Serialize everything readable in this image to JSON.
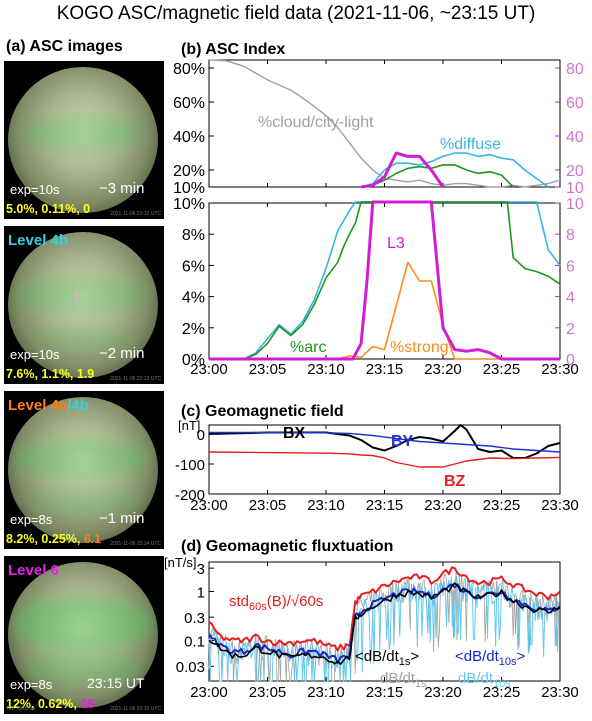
{
  "title": "KOGO ASC/magnetic field data (2021-11-06, ~23:15 UT)",
  "colors": {
    "level4b": "#38cfe6",
    "level4a": "#ff7d14",
    "level6": "#e61ee6",
    "values_yellow": "#ffff1e"
  },
  "asc_panel": {
    "title": "(a) ASC images",
    "images": [
      {
        "level_parts": [],
        "exposure": "exp=10s",
        "time": "−3 min",
        "values": [
          {
            "text": "5.0%, 0.11%, 0",
            "color": "#ffff1e"
          }
        ],
        "stamp": "2021-11-06 23:12 UTC"
      },
      {
        "level_parts": [
          {
            "text": "Level 4b",
            "color": "#38cfe6"
          }
        ],
        "exposure": "exp=10s",
        "time": "−2 min",
        "values": [
          {
            "text": "7.6%, 1.1%, ",
            "color": "#ffff1e"
          },
          {
            "text": "1.9",
            "color": "#ffff1e"
          }
        ],
        "stamp": "2021-11-06 23:13 UTC"
      },
      {
        "level_parts": [
          {
            "text": "Level 4a",
            "color": "#ff7d14"
          },
          {
            "text": "/4b",
            "color": "#38cfe6"
          }
        ],
        "exposure": "exp=8s",
        "time": "−1 min",
        "values": [
          {
            "text": "8.2%, 0.25%, ",
            "color": "#ffff1e"
          },
          {
            "text": "6.1",
            "color": "#ff7d14"
          }
        ],
        "stamp": "2021-11-06 23:14 UTC"
      },
      {
        "level_parts": [
          {
            "text": "Level 6",
            "color": "#e61ee6"
          }
        ],
        "exposure": "exp=8s",
        "time": "23:15 UT",
        "values": [
          {
            "text": "12%, 0.62%, ",
            "color": "#ffff1e"
          },
          {
            "text": "16",
            "color": "#e61ee6"
          }
        ],
        "stamp": "2021-11-06 23:15 UTC",
        "stamp_left": "IRF KIRUNA"
      }
    ]
  },
  "chart_data": [
    {
      "id": "b_top",
      "type": "line",
      "title": "(b) ASC Index",
      "xlim": [
        0,
        30
      ],
      "xticks": [
        "23:00",
        "23:05",
        "23:10",
        "23:15",
        "23:20",
        "23:25",
        "23:30"
      ],
      "ylim_left": [
        10,
        90
      ],
      "yticks_left": [
        "10%",
        "20%",
        "40%",
        "60%",
        "80%"
      ],
      "ylim_right": [
        10,
        90
      ],
      "yticks_right": [
        "10",
        "20",
        "40",
        "60",
        "80"
      ],
      "annotations": {
        "cloud": "%cloud/city-light",
        "diffuse": "%diffuse"
      },
      "series": [
        {
          "key": "cloud",
          "color": "#a0a0a0",
          "axis": "left",
          "x": [
            0,
            1.5,
            3,
            5,
            7,
            8.5,
            10,
            11,
            12,
            13,
            14,
            15,
            16,
            17,
            18,
            19,
            20,
            21,
            22,
            23,
            24,
            25,
            26,
            27,
            28,
            29,
            30
          ],
          "y": [
            90,
            89,
            82,
            73,
            67,
            60,
            52,
            45,
            36,
            27,
            20,
            15,
            14,
            13,
            14,
            12,
            11,
            12,
            12,
            11,
            10,
            9,
            11,
            10,
            11,
            12,
            14
          ]
        },
        {
          "key": "diffuse",
          "color": "#38b4e6",
          "axis": "left",
          "x": [
            13,
            14,
            15,
            16,
            17,
            18,
            19,
            20,
            21,
            22,
            23,
            24,
            25,
            26,
            27,
            28,
            29
          ],
          "y": [
            10,
            12,
            20,
            24,
            24,
            23,
            25,
            28,
            30,
            30,
            28,
            29,
            27,
            26,
            20,
            15,
            10
          ]
        },
        {
          "key": "arc",
          "color": "#1e961e",
          "axis": "left",
          "x": [
            13,
            14,
            15,
            16,
            17,
            18,
            19,
            20,
            21,
            22,
            23,
            24,
            25,
            26
          ],
          "y": [
            10,
            11,
            14,
            18,
            21,
            22,
            21,
            23,
            23,
            20,
            18,
            19,
            17,
            10
          ]
        },
        {
          "key": "level",
          "color": "#d21ed2",
          "axis": "right",
          "x": [
            13,
            14,
            15,
            16,
            17,
            18,
            19,
            20
          ],
          "y": [
            10,
            11,
            16,
            30,
            28,
            28,
            20,
            10
          ]
        }
      ]
    },
    {
      "id": "b_bottom",
      "type": "line",
      "xlim": [
        0,
        30
      ],
      "xticks": [
        "23:00",
        "23:05",
        "23:10",
        "23:15",
        "23:20",
        "23:25",
        "23:30"
      ],
      "ylim_left": [
        0,
        10
      ],
      "yticks_left": [
        "0%",
        "2%",
        "4%",
        "6%",
        "8%",
        "10%"
      ],
      "ylim_right": [
        0,
        10
      ],
      "yticks_right": [
        "0",
        "2",
        "4",
        "6",
        "8",
        "10"
      ],
      "annotations": {
        "arc": "%arc",
        "strong": "%strong",
        "level": "L3"
      },
      "series": [
        {
          "key": "diffuse",
          "color": "#38b4e6",
          "axis": "left",
          "x": [
            0,
            3,
            4,
            5,
            6,
            7,
            8,
            9,
            10,
            11,
            12,
            12.5,
            13,
            14,
            28,
            29,
            30
          ],
          "y": [
            0,
            0,
            0.4,
            1.3,
            2.2,
            1.6,
            2.4,
            3.8,
            5.8,
            8.2,
            9.5,
            10.5,
            10.5,
            10.5,
            10.5,
            7,
            6
          ]
        },
        {
          "key": "arc",
          "color": "#1e961e",
          "axis": "left",
          "x": [
            0,
            3,
            4,
            5,
            6,
            7,
            8,
            9,
            10,
            11,
            11.5,
            12,
            12.5,
            13,
            14,
            25.5,
            26,
            27,
            28,
            29,
            30
          ],
          "y": [
            0,
            0,
            0.3,
            1.0,
            2.1,
            1.5,
            2.2,
            3.5,
            5.2,
            6.2,
            7.2,
            8.0,
            8.7,
            10.5,
            10.5,
            10.5,
            6.5,
            5.8,
            5.6,
            5.3,
            4.8
          ]
        },
        {
          "key": "strong",
          "color": "#ff8c1e",
          "axis": "left",
          "x": [
            0,
            11,
            12,
            13,
            14,
            15,
            16,
            17,
            18,
            19,
            20,
            21,
            22,
            30
          ],
          "y": [
            0,
            0,
            0.2,
            0.1,
            0.8,
            0.6,
            3.4,
            6.2,
            5.0,
            5.0,
            2.2,
            0,
            0,
            0
          ]
        },
        {
          "key": "level",
          "color": "#d21ed2",
          "axis": "right",
          "x": [
            0,
            11.7,
            12.3,
            13,
            13.5,
            14,
            14.6,
            15.3,
            16,
            19,
            20,
            21,
            22,
            23,
            24,
            25,
            30
          ],
          "y": [
            0,
            0,
            0,
            1,
            5,
            10.5,
            10.5,
            10.5,
            10.5,
            10.5,
            2,
            0.6,
            0.5,
            0.6,
            0.4,
            0,
            0
          ]
        }
      ]
    },
    {
      "id": "c",
      "type": "line",
      "title": "(c) Geomagnetic field",
      "ylabel": "[nT]",
      "xlim": [
        0,
        30
      ],
      "xticks": [
        "23:00",
        "23:05",
        "23:10",
        "23:15",
        "23:20",
        "23:25",
        "23:30"
      ],
      "ylim": [
        -200,
        30
      ],
      "yticks": [
        "-200",
        "-100",
        "0"
      ],
      "series": [
        {
          "name": "BX",
          "color": "#000000",
          "x": [
            0,
            5,
            10,
            11,
            12,
            13,
            14,
            15,
            16,
            17,
            18,
            19,
            19.5,
            20,
            21,
            21.5,
            22,
            23,
            24,
            25,
            26,
            27,
            28,
            29,
            30
          ],
          "y": [
            0,
            5,
            5,
            0,
            -5,
            -20,
            -45,
            -55,
            -40,
            -20,
            -10,
            -15,
            -20,
            -25,
            10,
            30,
            15,
            -50,
            -60,
            -55,
            -80,
            -80,
            -65,
            -40,
            -30
          ]
        },
        {
          "name": "BY",
          "color": "#1e32d2",
          "x": [
            0,
            5,
            10,
            12,
            14,
            16,
            18,
            20,
            22,
            24,
            26,
            28,
            30
          ],
          "y": [
            5,
            5,
            4,
            2,
            -5,
            -15,
            -25,
            -30,
            -35,
            -40,
            -50,
            -55,
            -60
          ]
        },
        {
          "name": "BZ",
          "color": "#e61e1e",
          "x": [
            0,
            5,
            10,
            12,
            13,
            14,
            15,
            16,
            18,
            20,
            21,
            22,
            24,
            26,
            28,
            30
          ],
          "y": [
            -60,
            -62,
            -64,
            -66,
            -70,
            -72,
            -80,
            -95,
            -110,
            -110,
            -100,
            -90,
            -80,
            -82,
            -80,
            -78
          ]
        }
      ]
    },
    {
      "id": "d",
      "type": "line",
      "title": "(d) Geomagnetic fluxtuation",
      "ylabel": "[nT/s]",
      "xlim": [
        0,
        30
      ],
      "xticks": [
        "23:00",
        "23:05",
        "23:10",
        "23:15",
        "23:20",
        "23:25",
        "23:30"
      ],
      "ylim_log": [
        0.015,
        4
      ],
      "yticks": [
        "0.03",
        "0.1",
        "0.3",
        "1",
        "3"
      ],
      "legend": {
        "std_main": "std",
        "std_sub": "60s",
        "std_tail": "(B)/√60s",
        "dbdt1_main": "<dB/dt",
        "dbdt1_sub": "1s",
        "dbdt1_tail": ">",
        "dbdt10_main": "<dB/dt",
        "dbdt10_sub": "10s",
        "dbdt10_tail": ">",
        "gray_main": "dB/dt",
        "gray_sub": "1s",
        "cyan_main": "dB/dt",
        "cyan_sub": "10s"
      },
      "series": [
        {
          "key": "std",
          "color": "#e61e1e",
          "x": [
            0,
            1,
            2,
            3,
            4,
            5,
            6,
            7,
            8,
            9,
            10,
            11,
            12,
            12.5,
            13,
            14,
            15,
            16,
            17,
            18,
            19,
            20,
            21,
            22,
            23,
            24,
            25,
            26,
            27,
            28,
            29,
            30
          ],
          "y": [
            0.22,
            0.12,
            0.1,
            0.1,
            0.12,
            0.1,
            0.09,
            0.09,
            0.1,
            0.1,
            0.08,
            0.07,
            0.08,
            0.6,
            0.8,
            1.0,
            1.3,
            1.6,
            1.9,
            2.0,
            1.6,
            2.3,
            3.0,
            2.0,
            1.5,
            1.6,
            1.8,
            1.4,
            1.1,
            0.9,
            0.8,
            1.0
          ]
        },
        {
          "key": "dbdt10s_avg",
          "color": "#1428c8",
          "x": [
            0,
            1,
            2,
            3,
            4,
            5,
            6,
            7,
            8,
            9,
            10,
            11,
            12,
            12.5,
            13,
            14,
            15,
            16,
            17,
            18,
            19,
            20,
            21,
            22,
            23,
            24,
            25,
            26,
            27,
            28,
            29,
            30
          ],
          "y": [
            0.12,
            0.08,
            0.06,
            0.06,
            0.08,
            0.07,
            0.06,
            0.05,
            0.06,
            0.06,
            0.05,
            0.04,
            0.05,
            0.3,
            0.4,
            0.55,
            0.7,
            0.9,
            1.0,
            1.0,
            0.8,
            1.1,
            1.4,
            1.0,
            0.8,
            0.9,
            1.0,
            0.7,
            0.55,
            0.45,
            0.4,
            0.5
          ]
        },
        {
          "key": "dbdt1s_avg",
          "color": "#000000",
          "x": [
            0,
            1,
            2,
            3,
            4,
            5,
            6,
            7,
            8,
            9,
            10,
            11,
            12,
            12.5,
            13,
            14,
            15,
            16,
            17,
            18,
            19,
            20,
            21,
            22,
            23,
            24,
            25,
            26,
            27,
            28,
            29,
            30
          ],
          "y": [
            0.11,
            0.07,
            0.05,
            0.05,
            0.07,
            0.06,
            0.05,
            0.045,
            0.05,
            0.05,
            0.045,
            0.035,
            0.045,
            0.28,
            0.35,
            0.5,
            0.65,
            0.85,
            0.95,
            0.9,
            0.75,
            1.0,
            1.3,
            0.95,
            0.75,
            0.85,
            0.95,
            0.65,
            0.5,
            0.42,
            0.38,
            0.48
          ]
        }
      ]
    }
  ]
}
